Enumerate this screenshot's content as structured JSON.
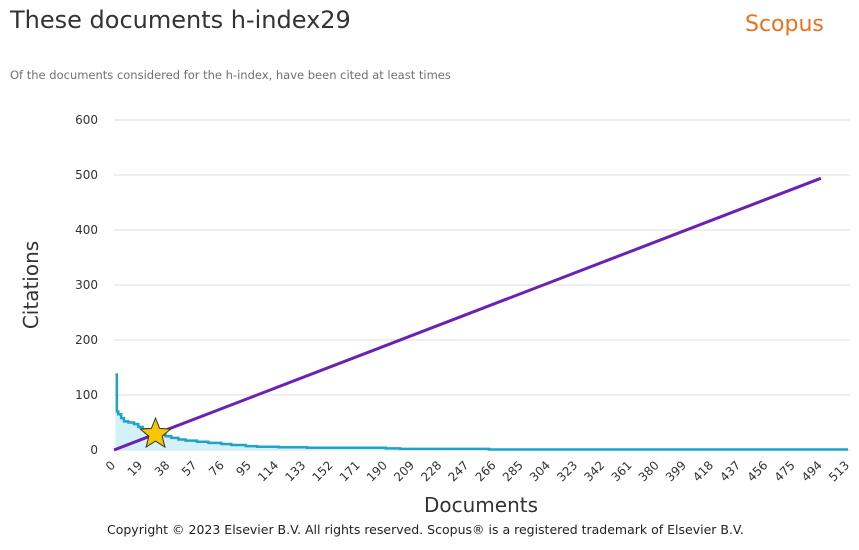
{
  "header": {
    "title": "These documents h-index29",
    "brand": "Scopus",
    "subtitle": "Of the documents considered for the h-index, have been cited at least times"
  },
  "footer": {
    "copyright": "Copyright © 2023 Elsevier B.V. All rights reserved. Scopus® is a registered trademark of Elsevier B.V."
  },
  "colors": {
    "citations_line": "#1fa3c8",
    "citations_fill": "#cfeef7",
    "diagonal": "#6b21b5",
    "star_fill": "#f7c600",
    "star_stroke": "#333333",
    "grid": "#dddddd",
    "brand": "#e9711c"
  },
  "chart_data": {
    "type": "area",
    "xlabel": "Documents",
    "ylabel": "Citations",
    "xlim": [
      0,
      513
    ],
    "ylim": [
      0,
      600
    ],
    "y_ticks": [
      0,
      100,
      200,
      300,
      400,
      500,
      600
    ],
    "x_ticks": [
      0,
      19,
      38,
      57,
      76,
      95,
      114,
      133,
      152,
      171,
      190,
      209,
      228,
      247,
      266,
      285,
      304,
      323,
      342,
      361,
      380,
      399,
      418,
      437,
      456,
      475,
      494,
      513
    ],
    "grid": true,
    "series": [
      {
        "kind": "citations",
        "points": [
          [
            1,
            137
          ],
          [
            2,
            70
          ],
          [
            3,
            65
          ],
          [
            5,
            58
          ],
          [
            7,
            52
          ],
          [
            10,
            50
          ],
          [
            14,
            47
          ],
          [
            17,
            42
          ],
          [
            20,
            38
          ],
          [
            24,
            36
          ],
          [
            26,
            33
          ],
          [
            29,
            30
          ],
          [
            33,
            28
          ],
          [
            36,
            25
          ],
          [
            40,
            22
          ],
          [
            45,
            19
          ],
          [
            50,
            17
          ],
          [
            58,
            15
          ],
          [
            66,
            13
          ],
          [
            75,
            11
          ],
          [
            82,
            9
          ],
          [
            92,
            7
          ],
          [
            100,
            6
          ],
          [
            115,
            5
          ],
          [
            135,
            4
          ],
          [
            190,
            3
          ],
          [
            200,
            2
          ],
          [
            262,
            1
          ],
          [
            300,
            1
          ],
          [
            400,
            1
          ],
          [
            494,
            1
          ],
          [
            513,
            1
          ]
        ]
      },
      {
        "kind": "diagonal",
        "points": [
          [
            0,
            0
          ],
          [
            513,
            513
          ]
        ]
      }
    ],
    "h_index": {
      "x": 29,
      "y": 29
    }
  }
}
